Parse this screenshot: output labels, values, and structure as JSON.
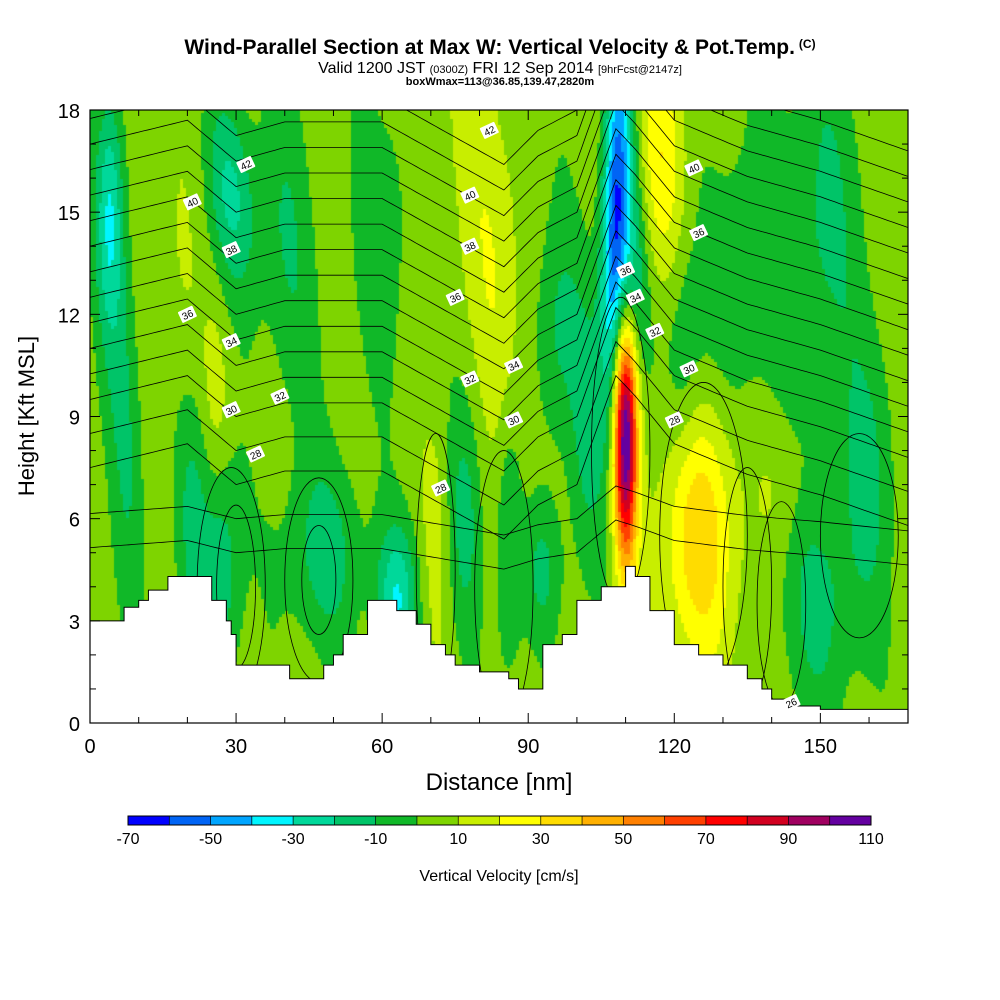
{
  "header": {
    "title": "Wind-Parallel Section at Max W: Vertical Velocity & Pot.Temp.",
    "copyright": "(C)",
    "valid_prefix": "Valid 1200 JST",
    "valid_utc": "(0300Z)",
    "valid_date": "FRI 12 Sep 2014",
    "forecast": "[9hrFcst@2147z]",
    "boxinfo": "boxWmax=113@36.85,139.47,2820m"
  },
  "chart_data": {
    "type": "heatmap",
    "xlabel": "Distance [nm]",
    "ylabel": "Height [Kft MSL]",
    "xlim": [
      0,
      168
    ],
    "ylim": [
      0,
      18
    ],
    "x_ticks": [
      0,
      30,
      60,
      90,
      120,
      150
    ],
    "y_ticks": [
      0,
      3,
      6,
      9,
      12,
      15,
      18
    ],
    "x_minor_step": 10,
    "y_minor_step": 1,
    "colorbar": {
      "label": "Vertical Velocity [cm/s]",
      "levels": [
        -70,
        -60,
        -50,
        -40,
        -30,
        -20,
        -10,
        0,
        10,
        20,
        30,
        40,
        50,
        60,
        70,
        80,
        90,
        100,
        110
      ],
      "tick_labels": [
        "-70",
        "-50",
        "-30",
        "-10",
        "10",
        "30",
        "50",
        "70",
        "90",
        "110"
      ],
      "colors": [
        "#0000ff",
        "#0064f5",
        "#00a5ff",
        "#00f5ff",
        "#00d89a",
        "#00c468",
        "#10b828",
        "#7ed400",
        "#c8ee00",
        "#ffff00",
        "#ffdc00",
        "#ffb000",
        "#ff8000",
        "#ff4000",
        "#ff0000",
        "#d20020",
        "#a00060",
        "#6400a0"
      ]
    },
    "background_color": "#7ed400",
    "w_features": [
      {
        "x": 7,
        "y": 9.5,
        "sx": 2.5,
        "sy": 4.5,
        "value": -12,
        "tilt": -0.3
      },
      {
        "x": 4,
        "y": 15.0,
        "sx": 2.0,
        "sy": 2.5,
        "value": -25,
        "tilt": 0.0
      },
      {
        "x": 19,
        "y": 12.0,
        "sx": 3.0,
        "sy": 4.0,
        "value": 12,
        "tilt": -0.5
      },
      {
        "x": 26,
        "y": 9.5,
        "sx": 2.0,
        "sy": 2.0,
        "value": 14,
        "tilt": 0.0
      },
      {
        "x": 29,
        "y": 15.5,
        "sx": 3.5,
        "sy": 2.0,
        "value": -20,
        "tilt": -0.5
      },
      {
        "x": 40,
        "y": 14.0,
        "sx": 4.0,
        "sy": 3.5,
        "value": -10,
        "tilt": -0.4
      },
      {
        "x": 27,
        "y": 4.5,
        "sx": 3.0,
        "sy": 2.5,
        "value": -18,
        "tilt": 0.0
      },
      {
        "x": 21,
        "y": 6.5,
        "sx": 2.5,
        "sy": 3.0,
        "value": -12,
        "tilt": 0.0
      },
      {
        "x": 48,
        "y": 5.0,
        "sx": 6.0,
        "sy": 2.0,
        "value": -14,
        "tilt": 0.0
      },
      {
        "x": 60,
        "y": 14.5,
        "sx": 4.0,
        "sy": 3.0,
        "value": -8,
        "tilt": 0.0
      },
      {
        "x": 63,
        "y": 3.6,
        "sx": 3.0,
        "sy": 1.5,
        "value": -28,
        "tilt": 0.0
      },
      {
        "x": 71,
        "y": 5.5,
        "sx": 2.0,
        "sy": 2.5,
        "value": 13,
        "tilt": 0.0
      },
      {
        "x": 77,
        "y": 6.0,
        "sx": 2.5,
        "sy": 2.5,
        "value": -12,
        "tilt": 0.0
      },
      {
        "x": 83,
        "y": 13.5,
        "sx": 3.5,
        "sy": 5.0,
        "value": 22,
        "tilt": -0.6
      },
      {
        "x": 86,
        "y": 5.5,
        "sx": 2.0,
        "sy": 3.0,
        "value": -14,
        "tilt": 0.0
      },
      {
        "x": 93,
        "y": 4.5,
        "sx": 3.0,
        "sy": 1.5,
        "value": -12,
        "tilt": 0.0
      },
      {
        "x": 96,
        "y": 11.5,
        "sx": 3.5,
        "sy": 2.5,
        "value": -12,
        "tilt": 0.0
      },
      {
        "x": 102,
        "y": 8.5,
        "sx": 2.5,
        "sy": 3.0,
        "value": -10,
        "tilt": 0.0
      },
      {
        "x": 108,
        "y": 15.0,
        "sx": 2.0,
        "sy": 4.0,
        "value": -55,
        "tilt": 0.2
      },
      {
        "x": 111,
        "y": 13.0,
        "sx": 2.5,
        "sy": 2.5,
        "value": -25,
        "tilt": 0.0
      },
      {
        "x": 110,
        "y": 8.5,
        "sx": 1.7,
        "sy": 2.6,
        "value": 115,
        "tilt": 0.0
      },
      {
        "x": 117,
        "y": 16.5,
        "sx": 3.5,
        "sy": 2.5,
        "value": 28,
        "tilt": 0.0
      },
      {
        "x": 125,
        "y": 5.6,
        "sx": 5.5,
        "sy": 2.8,
        "value": 38,
        "tilt": 0.0
      },
      {
        "x": 122,
        "y": 10.5,
        "sx": 3.0,
        "sy": 2.5,
        "value": -12,
        "tilt": 0.0
      },
      {
        "x": 134,
        "y": 13.0,
        "sx": 5.0,
        "sy": 3.0,
        "value": -10,
        "tilt": 0.0
      },
      {
        "x": 150,
        "y": 14.5,
        "sx": 6.0,
        "sy": 4.0,
        "value": -12,
        "tilt": 0.0
      },
      {
        "x": 150,
        "y": 3.5,
        "sx": 6.0,
        "sy": 2.5,
        "value": -12,
        "tilt": 0.0
      },
      {
        "x": 143,
        "y": 7.0,
        "sx": 4.0,
        "sy": 1.5,
        "value": 12,
        "tilt": 0.0
      },
      {
        "x": 160,
        "y": 7.5,
        "sx": 4.0,
        "sy": 3.0,
        "value": -10,
        "tilt": 0.0
      }
    ],
    "terrain": {
      "x": [
        0,
        5,
        7,
        10,
        12,
        16,
        25,
        25,
        28,
        29,
        30,
        33,
        40,
        41,
        45,
        48,
        50,
        52,
        57,
        60,
        63,
        67,
        70,
        73,
        75,
        80,
        86,
        88,
        90,
        93,
        97,
        100,
        105,
        110,
        112,
        115,
        120,
        125,
        130,
        135,
        138,
        140,
        145,
        150,
        155,
        160,
        168
      ],
      "y": [
        3.0,
        3.0,
        3.4,
        3.6,
        3.9,
        4.3,
        4.3,
        3.6,
        3.0,
        2.6,
        1.7,
        1.7,
        1.7,
        1.3,
        1.3,
        1.7,
        2.0,
        2.6,
        3.6,
        3.6,
        3.3,
        2.9,
        2.3,
        2.0,
        1.7,
        1.5,
        1.3,
        1.0,
        1.0,
        2.3,
        2.6,
        3.6,
        4.0,
        4.6,
        4.3,
        3.3,
        2.3,
        2.0,
        1.7,
        1.3,
        1.0,
        0.7,
        0.5,
        0.4,
        0.4,
        0.4,
        0.4
      ]
    },
    "theta_levels": [
      26,
      27,
      28,
      29,
      30,
      31,
      32,
      33,
      34,
      35,
      36,
      37,
      38,
      39,
      40,
      41,
      42
    ],
    "theta_profile": {
      "x": [
        0,
        20,
        30,
        40,
        60,
        85,
        92,
        100,
        108,
        112,
        120,
        135,
        150,
        168
      ],
      "dy": [
        0.5,
        1.2,
        0.0,
        0.4,
        0.4,
        -1.6,
        -0.6,
        0.0,
        3.2,
        2.6,
        1.2,
        0.3,
        -0.3,
        -1.2
      ]
    },
    "theta_labels": [
      {
        "text": "42",
        "x": 32,
        "y": 16.4
      },
      {
        "text": "40",
        "x": 21,
        "y": 15.3
      },
      {
        "text": "38",
        "x": 29,
        "y": 13.9
      },
      {
        "text": "36",
        "x": 20,
        "y": 12.0
      },
      {
        "text": "34",
        "x": 29,
        "y": 11.2
      },
      {
        "text": "32",
        "x": 39,
        "y": 9.6
      },
      {
        "text": "30",
        "x": 29,
        "y": 9.2
      },
      {
        "text": "28",
        "x": 34,
        "y": 7.9
      },
      {
        "text": "42",
        "x": 82,
        "y": 17.4
      },
      {
        "text": "40",
        "x": 78,
        "y": 15.5
      },
      {
        "text": "38",
        "x": 78,
        "y": 14.0
      },
      {
        "text": "36",
        "x": 75,
        "y": 12.5
      },
      {
        "text": "32",
        "x": 78,
        "y": 10.1
      },
      {
        "text": "34",
        "x": 87,
        "y": 10.5
      },
      {
        "text": "30",
        "x": 87,
        "y": 8.9
      },
      {
        "text": "28",
        "x": 72,
        "y": 6.9
      },
      {
        "text": "40",
        "x": 124,
        "y": 16.3
      },
      {
        "text": "36",
        "x": 125,
        "y": 14.4
      },
      {
        "text": "36",
        "x": 110,
        "y": 13.3
      },
      {
        "text": "34",
        "x": 112,
        "y": 12.5
      },
      {
        "text": "32",
        "x": 116,
        "y": 11.5
      },
      {
        "text": "30",
        "x": 123,
        "y": 10.4
      },
      {
        "text": "28",
        "x": 120,
        "y": 8.9
      },
      {
        "text": "26",
        "x": 144,
        "y": 0.6
      }
    ],
    "w_contours": [
      {
        "cx": 29,
        "cy": 4.0,
        "rx": 7,
        "ry": 3.5
      },
      {
        "cx": 30,
        "cy": 4.0,
        "rx": 4,
        "ry": 2.4
      },
      {
        "cx": 47,
        "cy": 4.2,
        "rx": 7,
        "ry": 3.0
      },
      {
        "cx": 47,
        "cy": 4.2,
        "rx": 3.5,
        "ry": 1.6
      },
      {
        "cx": 71,
        "cy": 4.5,
        "rx": 4,
        "ry": 4.0
      },
      {
        "cx": 85,
        "cy": 4.0,
        "rx": 6,
        "ry": 4.0
      },
      {
        "cx": 109,
        "cy": 8.0,
        "rx": 6,
        "ry": 4.5
      },
      {
        "cx": 126,
        "cy": 5.5,
        "rx": 9,
        "ry": 4.5
      },
      {
        "cx": 135,
        "cy": 4.0,
        "rx": 5,
        "ry": 3.5
      },
      {
        "cx": 142,
        "cy": 3.5,
        "rx": 5,
        "ry": 3.0
      },
      {
        "cx": 158,
        "cy": 5.5,
        "rx": 8,
        "ry": 3.0
      }
    ]
  }
}
